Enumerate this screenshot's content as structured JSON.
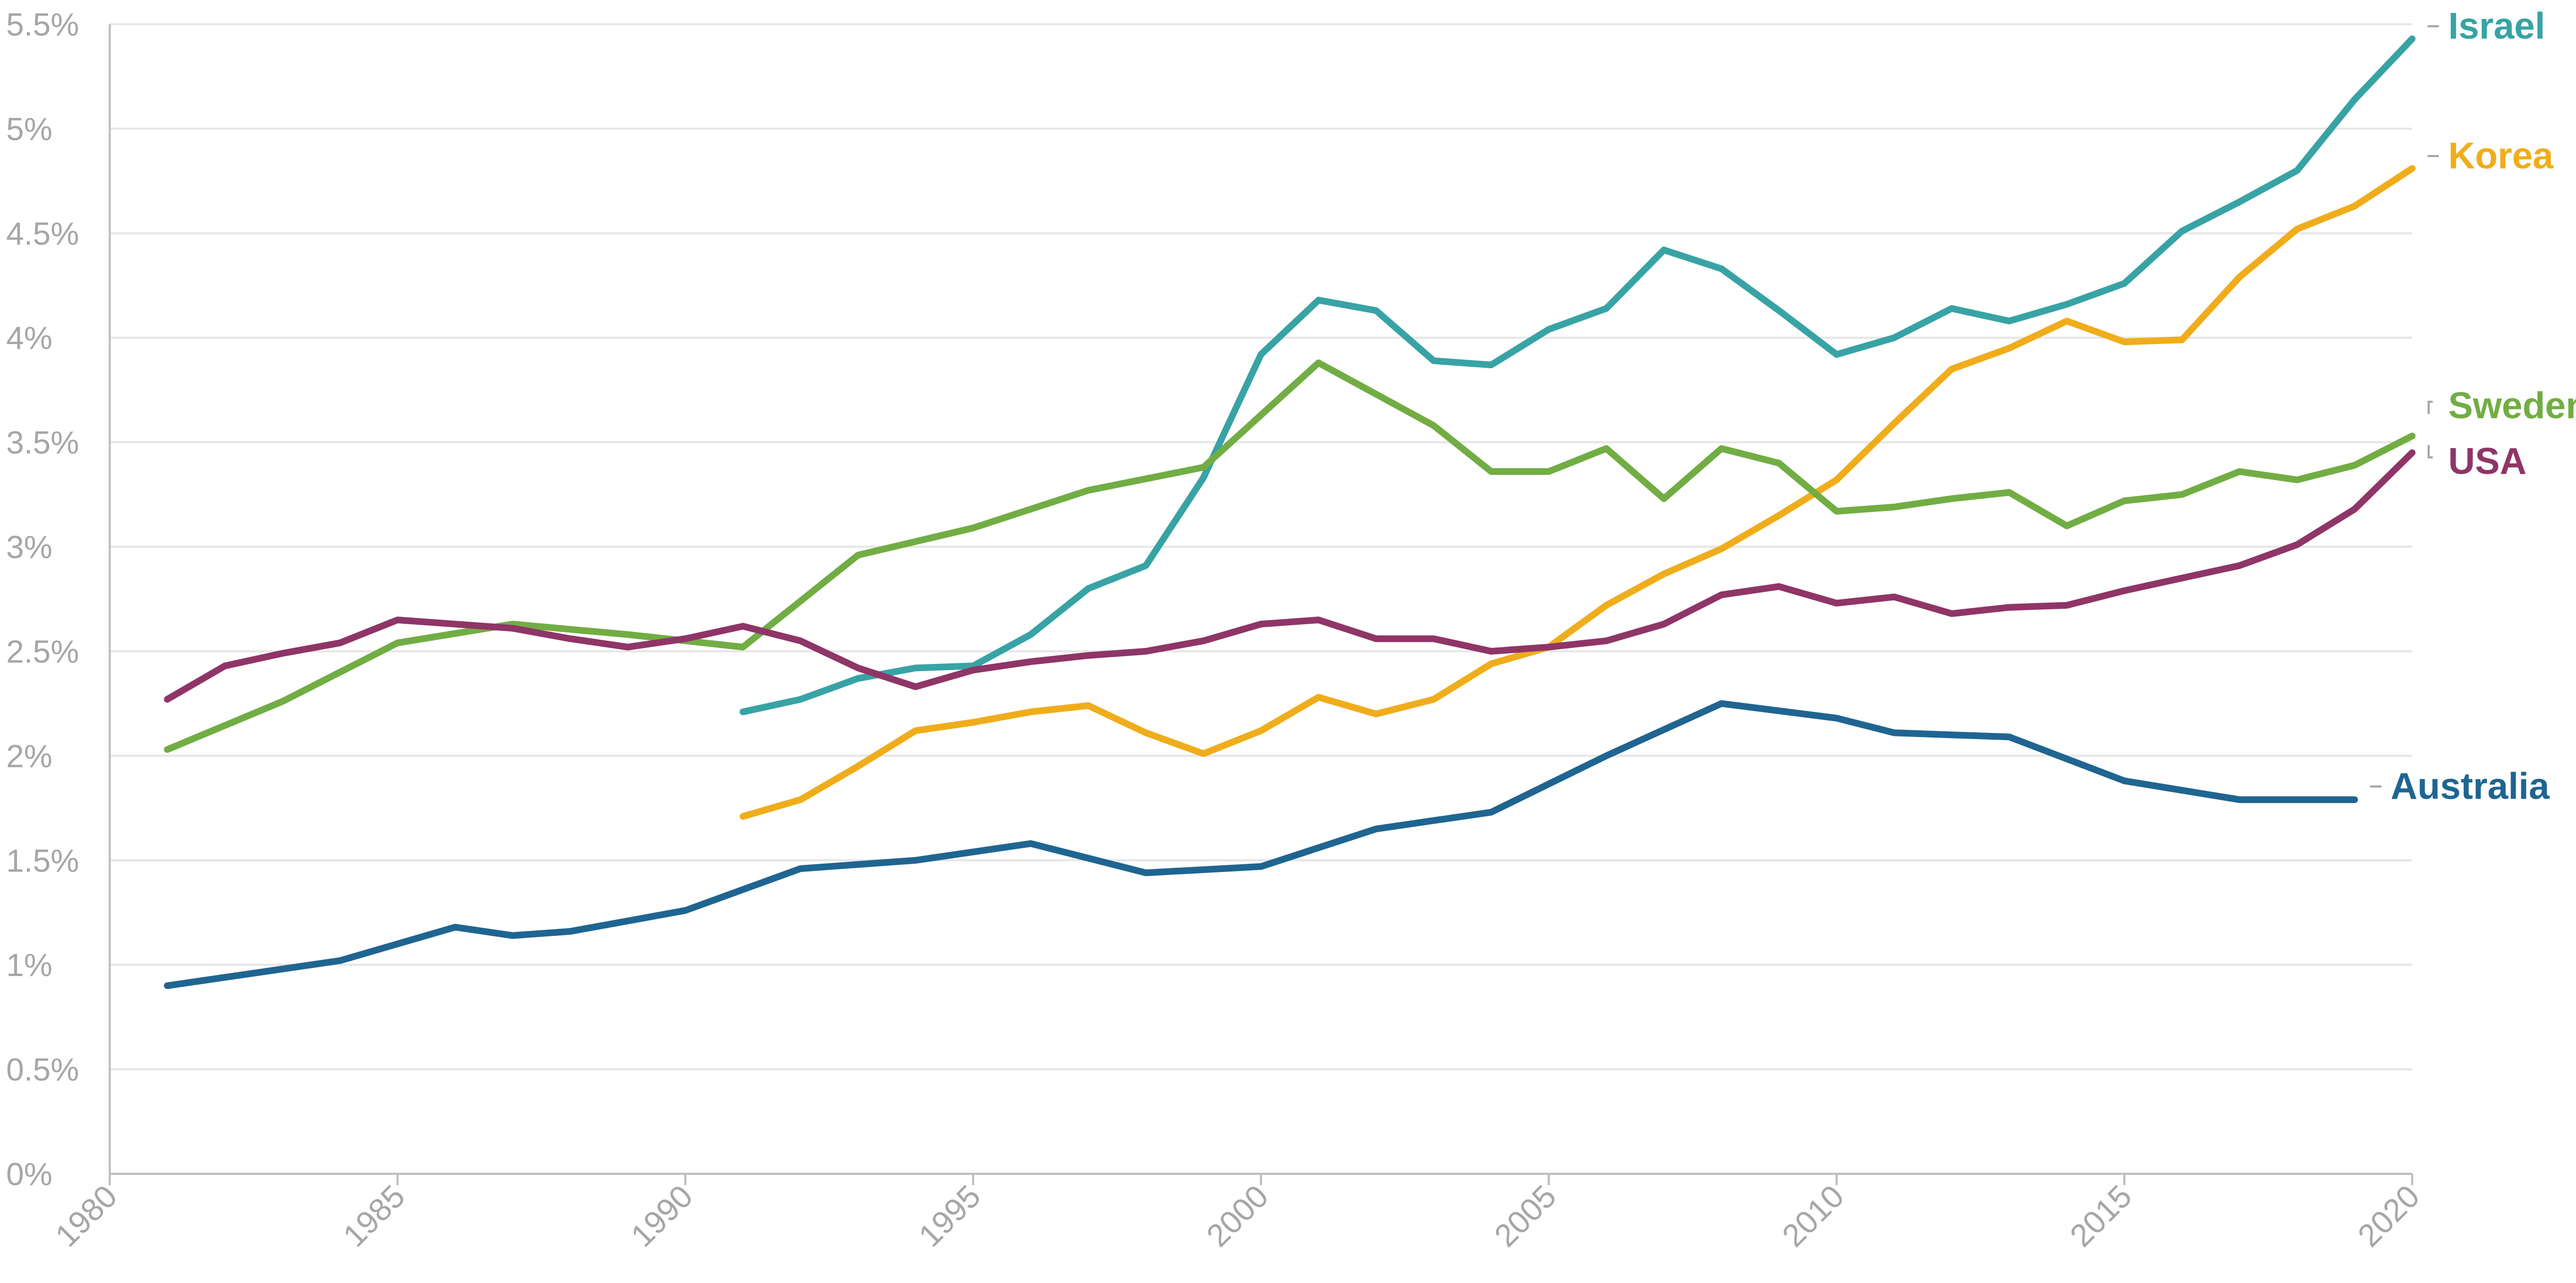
{
  "chart_data": {
    "type": "line",
    "title": "",
    "xlabel": "",
    "ylabel": "",
    "xlim": [
      1980,
      2020
    ],
    "ylim": [
      0,
      5.5
    ],
    "x_ticks": [
      1980,
      1985,
      1990,
      1995,
      2000,
      2005,
      2010,
      2015,
      2020
    ],
    "x_tick_labels": [
      "1980",
      "1985",
      "1990",
      "1995",
      "2000",
      "2005",
      "2010",
      "2015",
      "2020"
    ],
    "y_ticks": [
      0,
      0.5,
      1,
      1.5,
      2,
      2.5,
      3,
      3.5,
      4,
      4.5,
      5,
      5.5
    ],
    "y_tick_labels": [
      "0%",
      "0.5%",
      "1%",
      "1.5%",
      "2%",
      "2.5%",
      "3%",
      "3.5%",
      "4%",
      "4.5%",
      "5%",
      "5.5%"
    ],
    "grid": true,
    "legend": "end-of-line labels",
    "series": [
      {
        "name": "Israel",
        "color": "#38a3a5",
        "points": [
          [
            1991,
            2.21
          ],
          [
            1992,
            2.27
          ],
          [
            1993,
            2.37
          ],
          [
            1994,
            2.42
          ],
          [
            1995,
            2.43
          ],
          [
            1996,
            2.58
          ],
          [
            1997,
            2.8
          ],
          [
            1998,
            2.91
          ],
          [
            1999,
            3.33
          ],
          [
            2000,
            3.92
          ],
          [
            2001,
            4.18
          ],
          [
            2002,
            4.13
          ],
          [
            2003,
            3.89
          ],
          [
            2004,
            3.87
          ],
          [
            2005,
            4.04
          ],
          [
            2006,
            4.14
          ],
          [
            2007,
            4.42
          ],
          [
            2008,
            4.33
          ],
          [
            2009,
            4.13
          ],
          [
            2010,
            3.92
          ],
          [
            2011,
            4.0
          ],
          [
            2012,
            4.14
          ],
          [
            2013,
            4.08
          ],
          [
            2014,
            4.16
          ],
          [
            2015,
            4.26
          ],
          [
            2016,
            4.51
          ],
          [
            2017,
            4.65
          ],
          [
            2018,
            4.8
          ],
          [
            2019,
            5.14
          ],
          [
            2020,
            5.43
          ]
        ]
      },
      {
        "name": "Korea",
        "color": "#f0ad1b",
        "points": [
          [
            1991,
            1.71
          ],
          [
            1992,
            1.79
          ],
          [
            1993,
            1.95
          ],
          [
            1994,
            2.12
          ],
          [
            1995,
            2.16
          ],
          [
            1996,
            2.21
          ],
          [
            1997,
            2.24
          ],
          [
            1998,
            2.11
          ],
          [
            1999,
            2.01
          ],
          [
            2000,
            2.12
          ],
          [
            2001,
            2.28
          ],
          [
            2002,
            2.2
          ],
          [
            2003,
            2.27
          ],
          [
            2004,
            2.44
          ],
          [
            2005,
            2.52
          ],
          [
            2006,
            2.72
          ],
          [
            2007,
            2.87
          ],
          [
            2008,
            2.99
          ],
          [
            2009,
            3.15
          ],
          [
            2010,
            3.32
          ],
          [
            2011,
            3.59
          ],
          [
            2012,
            3.85
          ],
          [
            2013,
            3.95
          ],
          [
            2014,
            4.08
          ],
          [
            2015,
            3.98
          ],
          [
            2016,
            3.99
          ],
          [
            2017,
            4.29
          ],
          [
            2018,
            4.52
          ],
          [
            2019,
            4.63
          ],
          [
            2020,
            4.81
          ]
        ]
      },
      {
        "name": "Sweden",
        "color": "#72ad44",
        "points": [
          [
            1981,
            2.03
          ],
          [
            1983,
            2.26
          ],
          [
            1985,
            2.54
          ],
          [
            1987,
            2.63
          ],
          [
            1989,
            2.58
          ],
          [
            1991,
            2.52
          ],
          [
            1993,
            2.96
          ],
          [
            1995,
            3.09
          ],
          [
            1997,
            3.27
          ],
          [
            1999,
            3.38
          ],
          [
            2001,
            3.88
          ],
          [
            2003,
            3.58
          ],
          [
            2004,
            3.36
          ],
          [
            2005,
            3.36
          ],
          [
            2006,
            3.47
          ],
          [
            2007,
            3.23
          ],
          [
            2008,
            3.47
          ],
          [
            2009,
            3.4
          ],
          [
            2010,
            3.17
          ],
          [
            2011,
            3.19
          ],
          [
            2012,
            3.23
          ],
          [
            2013,
            3.26
          ],
          [
            2014,
            3.1
          ],
          [
            2015,
            3.22
          ],
          [
            2016,
            3.25
          ],
          [
            2017,
            3.36
          ],
          [
            2018,
            3.32
          ],
          [
            2019,
            3.39
          ],
          [
            2020,
            3.53
          ]
        ]
      },
      {
        "name": "USA",
        "color": "#8f3567",
        "points": [
          [
            1981,
            2.27
          ],
          [
            1982,
            2.43
          ],
          [
            1983,
            2.49
          ],
          [
            1984,
            2.54
          ],
          [
            1985,
            2.65
          ],
          [
            1986,
            2.63
          ],
          [
            1987,
            2.61
          ],
          [
            1988,
            2.56
          ],
          [
            1989,
            2.52
          ],
          [
            1990,
            2.56
          ],
          [
            1991,
            2.62
          ],
          [
            1992,
            2.55
          ],
          [
            1993,
            2.42
          ],
          [
            1994,
            2.33
          ],
          [
            1995,
            2.41
          ],
          [
            1996,
            2.45
          ],
          [
            1997,
            2.48
          ],
          [
            1998,
            2.5
          ],
          [
            1999,
            2.55
          ],
          [
            2000,
            2.63
          ],
          [
            2001,
            2.65
          ],
          [
            2002,
            2.56
          ],
          [
            2003,
            2.56
          ],
          [
            2004,
            2.5
          ],
          [
            2005,
            2.52
          ],
          [
            2006,
            2.55
          ],
          [
            2007,
            2.63
          ],
          [
            2008,
            2.77
          ],
          [
            2009,
            2.81
          ],
          [
            2010,
            2.73
          ],
          [
            2011,
            2.76
          ],
          [
            2012,
            2.68
          ],
          [
            2013,
            2.71
          ],
          [
            2014,
            2.72
          ],
          [
            2015,
            2.79
          ],
          [
            2016,
            2.85
          ],
          [
            2017,
            2.91
          ],
          [
            2018,
            3.01
          ],
          [
            2019,
            3.18
          ],
          [
            2020,
            3.45
          ]
        ]
      },
      {
        "name": "Australia",
        "color": "#1f6591",
        "points": [
          [
            1981,
            0.9
          ],
          [
            1984,
            1.02
          ],
          [
            1986,
            1.18
          ],
          [
            1987,
            1.14
          ],
          [
            1988,
            1.16
          ],
          [
            1990,
            1.26
          ],
          [
            1992,
            1.46
          ],
          [
            1994,
            1.5
          ],
          [
            1996,
            1.58
          ],
          [
            1998,
            1.44
          ],
          [
            2000,
            1.47
          ],
          [
            2002,
            1.65
          ],
          [
            2004,
            1.73
          ],
          [
            2006,
            2.0
          ],
          [
            2008,
            2.25
          ],
          [
            2010,
            2.18
          ],
          [
            2011,
            2.11
          ],
          [
            2013,
            2.09
          ],
          [
            2015,
            1.88
          ],
          [
            2017,
            1.79
          ],
          [
            2019,
            1.79
          ]
        ]
      }
    ]
  }
}
